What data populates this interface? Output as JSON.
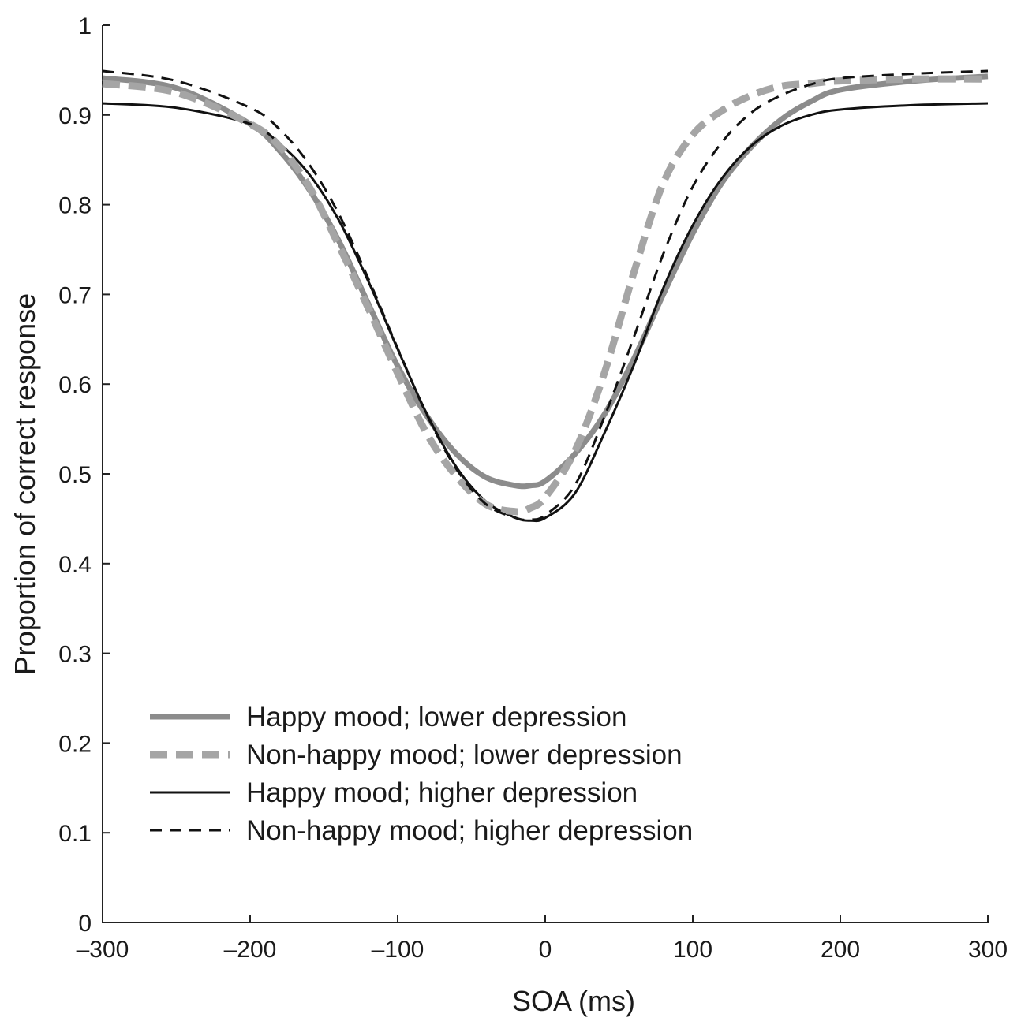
{
  "chart_data": {
    "type": "line",
    "title": "",
    "xlabel": "SOA (ms)",
    "ylabel": "Proportion of correct response",
    "xlim": [
      -300,
      300
    ],
    "ylim": [
      0,
      1
    ],
    "xticks": [
      -300,
      -200,
      -100,
      0,
      100,
      200,
      300
    ],
    "xtick_labels": [
      "–300",
      "–200",
      "–100",
      "0",
      "100",
      "200",
      "300"
    ],
    "yticks": [
      0,
      0.1,
      0.2,
      0.3,
      0.4,
      0.5,
      0.6,
      0.7,
      0.8,
      0.9,
      1
    ],
    "ytick_labels": [
      "0",
      "0.1",
      "0.2",
      "0.3",
      "0.4",
      "0.5",
      "0.6",
      "0.7",
      "0.8",
      "0.9",
      "1"
    ],
    "grid": false,
    "legend_position": "bottom-left",
    "x": [
      -300,
      -250,
      -200,
      -180,
      -160,
      -140,
      -120,
      -100,
      -80,
      -60,
      -40,
      -20,
      -10,
      0,
      20,
      40,
      60,
      80,
      100,
      120,
      140,
      160,
      180,
      200,
      250,
      300
    ],
    "series": [
      {
        "name": "Happy mood; lower depression",
        "color": "#8c8c8c",
        "style": "solid-thick",
        "values": [
          0.941,
          0.93,
          0.89,
          0.86,
          0.817,
          0.76,
          0.69,
          0.62,
          0.564,
          0.522,
          0.496,
          0.487,
          0.487,
          0.492,
          0.522,
          0.566,
          0.628,
          0.7,
          0.768,
          0.825,
          0.865,
          0.895,
          0.915,
          0.928,
          0.938,
          0.943
        ]
      },
      {
        "name": "Non-happy mood; lower depression",
        "color": "#a5a5a5",
        "style": "dashed-thick",
        "values": [
          0.935,
          0.925,
          0.89,
          0.865,
          0.82,
          0.755,
          0.685,
          0.612,
          0.544,
          0.497,
          0.466,
          0.458,
          0.462,
          0.474,
          0.525,
          0.612,
          0.724,
          0.824,
          0.878,
          0.905,
          0.922,
          0.932,
          0.935,
          0.938,
          0.94,
          0.94
        ]
      },
      {
        "name": "Happy mood; higher depression",
        "color": "#111111",
        "style": "solid-thin",
        "values": [
          0.913,
          0.908,
          0.89,
          0.868,
          0.834,
          0.783,
          0.715,
          0.639,
          0.566,
          0.507,
          0.469,
          0.451,
          0.448,
          0.451,
          0.478,
          0.545,
          0.621,
          0.707,
          0.777,
          0.83,
          0.866,
          0.888,
          0.9,
          0.906,
          0.911,
          0.913
        ]
      },
      {
        "name": "Non-happy mood; higher depression",
        "color": "#111111",
        "style": "dashed-thin",
        "values": [
          0.949,
          0.938,
          0.908,
          0.884,
          0.845,
          0.79,
          0.718,
          0.64,
          0.565,
          0.505,
          0.466,
          0.451,
          0.449,
          0.454,
          0.487,
          0.563,
          0.652,
          0.745,
          0.82,
          0.87,
          0.903,
          0.922,
          0.934,
          0.941,
          0.946,
          0.949
        ]
      }
    ]
  }
}
